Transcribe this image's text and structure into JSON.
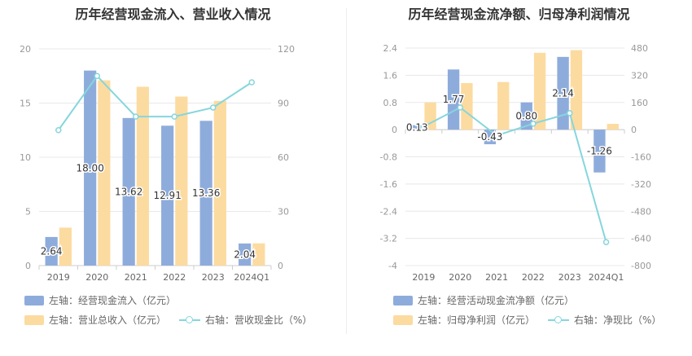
{
  "colors": {
    "bar_primary": "#8eacdb",
    "bar_secondary": "#fcdba0",
    "line": "#85d6dd",
    "axis_text": "#999999",
    "grid": "#e8e8e8"
  },
  "left": {
    "title": "历年经营现金流入、营业收入情况",
    "legend": {
      "bar1": "左轴：经营现金流入（亿元）",
      "bar2": "左轴：营业总收入（亿元）",
      "line": "右轴：营收现金比（%）"
    }
  },
  "right": {
    "title": "历年经营现金流净额、归母净利润情况",
    "legend": {
      "bar1": "左轴：经营活动现金流净额（亿元）",
      "bar2": "左轴：归母净利润（亿元）",
      "line": "右轴：净现比（%）"
    }
  },
  "chart_data": [
    {
      "type": "bar",
      "title": "历年经营现金流入、营业收入情况",
      "categories": [
        "2019",
        "2020",
        "2021",
        "2022",
        "2023",
        "2024Q1"
      ],
      "series": [
        {
          "name": "左轴：经营现金流入（亿元）",
          "axis": "left",
          "values": [
            2.64,
            18.0,
            13.62,
            12.91,
            13.36,
            2.04
          ],
          "labels": [
            "2.64",
            "18.00",
            "13.62",
            "12.91",
            "13.36",
            "2.04"
          ]
        },
        {
          "name": "左轴：营业总收入（亿元）",
          "axis": "left",
          "values": [
            3.5,
            17.1,
            16.5,
            15.6,
            15.2,
            2.05
          ]
        },
        {
          "name": "右轴：营收现金比（%）",
          "axis": "right",
          "type": "line",
          "values": [
            75,
            105,
            82.5,
            82.5,
            87.5,
            101.5
          ]
        }
      ],
      "yleft": {
        "min": 0,
        "max": 20,
        "ticks": [
          "0",
          "5",
          "10",
          "15",
          "20"
        ]
      },
      "yright": {
        "min": 0,
        "max": 120,
        "ticks": [
          "0",
          "30",
          "60",
          "90",
          "120"
        ]
      }
    },
    {
      "type": "bar",
      "title": "历年经营现金流净额、归母净利润情况",
      "categories": [
        "2019",
        "2020",
        "2021",
        "2022",
        "2023",
        "2024Q1"
      ],
      "series": [
        {
          "name": "左轴：经营活动现金流净额（亿元）",
          "axis": "left",
          "values": [
            0.13,
            1.77,
            -0.43,
            0.8,
            2.14,
            -1.26
          ],
          "labels": [
            "0.13",
            "1.77",
            "-0.43",
            "0.80",
            "2.14",
            "-1.26"
          ]
        },
        {
          "name": "左轴：归母净利润（亿元）",
          "axis": "left",
          "values": [
            0.8,
            1.37,
            1.4,
            2.26,
            2.34,
            0.17
          ]
        },
        {
          "name": "右轴：净现比（%）",
          "axis": "right",
          "type": "line",
          "values": [
            18,
            130,
            -35,
            35,
            97,
            -662
          ]
        }
      ],
      "yleft": {
        "min": -4,
        "max": 2.4,
        "ticks": [
          "2.4",
          "1.6",
          "0.8",
          "0",
          "-0.8",
          "-1.6",
          "-2.4",
          "-3.2",
          "-4"
        ]
      },
      "yright": {
        "min": -800,
        "max": 480,
        "ticks": [
          "480",
          "320",
          "160",
          "0",
          "-160",
          "-320",
          "-480",
          "-640",
          "-800"
        ]
      }
    }
  ]
}
